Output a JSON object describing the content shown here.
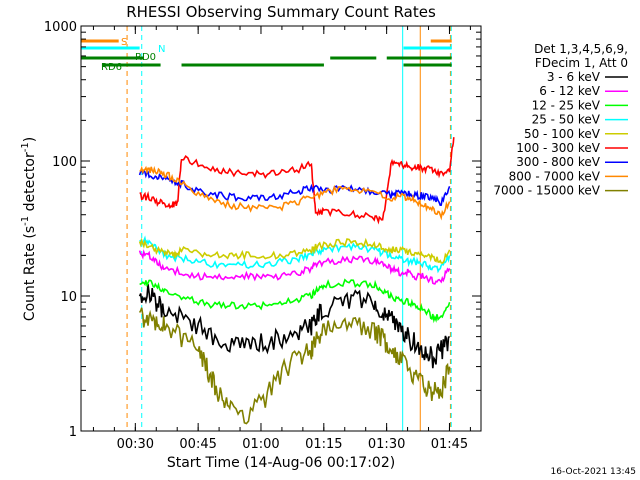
{
  "chart_data": {
    "type": "line",
    "title": "RHESSI Observing Summary Count Rates",
    "xlabel": "Start Time (14-Aug-06 00:17:02)",
    "ylabel": "Count Rate (s",
    "ylabel_sup": "-1",
    "ylabel_tail": " detector",
    "ylabel_sup2": "-1",
    "ylabel_close": ")",
    "x_unit": "minutes after 00:17:02",
    "xlim": [
      0,
      95.5
    ],
    "ylim": [
      1,
      1000
    ],
    "yscale": "log",
    "x_ticks": [
      {
        "label": "00:30",
        "x": 12.97
      },
      {
        "label": "00:45",
        "x": 27.97
      },
      {
        "label": "01:00",
        "x": 42.97
      },
      {
        "label": "01:15",
        "x": 57.97
      },
      {
        "label": "01:30",
        "x": 72.97
      },
      {
        "label": "01:45",
        "x": 87.97
      }
    ],
    "y_ticks": [
      {
        "label": "1",
        "y": 1
      },
      {
        "label": "10",
        "y": 10
      },
      {
        "label": "100",
        "y": 100
      },
      {
        "label": "1000",
        "y": 1000
      }
    ],
    "legend_header": [
      "Det 1,3,4,5,6,9,",
      "FDecim 1, Att 0"
    ],
    "series": [
      {
        "name": "3 - 6 keV",
        "color": "#000000",
        "x": [
          14,
          16,
          18,
          20,
          24,
          28,
          32,
          36,
          40,
          44,
          48,
          52,
          55,
          56,
          58,
          62,
          66,
          70,
          72,
          74,
          76,
          78,
          80,
          82,
          84,
          86,
          88
        ],
        "y": [
          10,
          11,
          9,
          8,
          7,
          6,
          5,
          4.5,
          4.5,
          4.5,
          5,
          5.5,
          6,
          7,
          8,
          9,
          9.5,
          9,
          8,
          7,
          6,
          5,
          4.5,
          4,
          3.5,
          4,
          5
        ]
      },
      {
        "name": "6 - 12 keV",
        "color": "#ff00ff",
        "x": [
          14,
          16,
          18,
          20,
          24,
          28,
          32,
          36,
          40,
          44,
          48,
          52,
          55,
          56,
          58,
          62,
          66,
          70,
          72,
          74,
          76,
          78,
          80,
          82,
          84,
          86,
          88
        ],
        "y": [
          21,
          20,
          18,
          16,
          15,
          14,
          14,
          14,
          14,
          14,
          14,
          15,
          16,
          17,
          18,
          18.5,
          19,
          18,
          17,
          16,
          15,
          15,
          14,
          14,
          13,
          13,
          16
        ]
      },
      {
        "name": "12 - 25 keV",
        "color": "#00ff00",
        "x": [
          14,
          16,
          18,
          20,
          24,
          28,
          32,
          36,
          40,
          44,
          48,
          52,
          55,
          56,
          58,
          62,
          66,
          70,
          72,
          74,
          76,
          78,
          80,
          82,
          84,
          86,
          88
        ],
        "y": [
          13,
          12.5,
          12,
          11,
          10,
          9,
          8.5,
          8.5,
          8.5,
          8.5,
          9,
          9.5,
          10,
          11,
          12,
          12.5,
          12.5,
          12,
          11,
          10,
          9.5,
          9,
          8.5,
          8,
          7,
          7,
          9
        ]
      },
      {
        "name": "25 - 50 keV",
        "color": "#00ffff",
        "x": [
          14,
          16,
          18,
          20,
          24,
          28,
          32,
          36,
          40,
          44,
          48,
          52,
          55,
          56,
          58,
          62,
          66,
          70,
          72,
          74,
          76,
          78,
          80,
          82,
          84,
          86,
          88
        ],
        "y": [
          26,
          25,
          23,
          20,
          19,
          18,
          17,
          17,
          17,
          17,
          18,
          19,
          20,
          21,
          22,
          23,
          23,
          22,
          21,
          20,
          19,
          18,
          18,
          17,
          16,
          16,
          20
        ]
      },
      {
        "name": "50 - 100 keV",
        "color": "#cccc00",
        "x": [
          14,
          16,
          18,
          20,
          22,
          23,
          24,
          28,
          32,
          36,
          40,
          44,
          48,
          52,
          55,
          56,
          58,
          62,
          66,
          70,
          72,
          74,
          76,
          78,
          80,
          82,
          84,
          86,
          88
        ],
        "y": [
          25,
          24,
          22,
          21,
          20,
          20,
          22,
          21,
          20,
          20,
          20,
          20,
          20,
          21,
          22,
          23,
          24,
          25,
          25,
          24,
          23,
          22,
          22,
          21,
          21,
          20,
          19,
          18,
          22
        ]
      },
      {
        "name": "100 - 300 keV",
        "color": "#ff0000",
        "x": [
          14,
          16,
          18,
          20,
          22,
          23,
          24,
          28,
          32,
          36,
          40,
          44,
          48,
          52,
          55,
          56,
          58,
          62,
          66,
          70,
          72,
          74,
          76,
          78,
          80,
          82,
          84,
          86,
          88,
          89
        ],
        "y": [
          55,
          54,
          50,
          48,
          48,
          47,
          105,
          95,
          87,
          82,
          80,
          80,
          82,
          87,
          95,
          42,
          42,
          41,
          40,
          38,
          36,
          95,
          94,
          92,
          90,
          88,
          86,
          80,
          85,
          150
        ]
      },
      {
        "name": "300 - 800 keV",
        "color": "#0000ff",
        "x": [
          14,
          16,
          18,
          20,
          22,
          24,
          28,
          32,
          36,
          40,
          44,
          48,
          52,
          55,
          58,
          62,
          66,
          70,
          74,
          76,
          78,
          80,
          82,
          84,
          86,
          88
        ],
        "y": [
          82,
          80,
          77,
          73,
          70,
          68,
          60,
          56,
          54,
          53,
          54,
          56,
          60,
          64,
          60,
          62,
          62,
          58,
          56,
          58,
          57,
          56,
          55,
          54,
          48,
          65
        ]
      },
      {
        "name": "800 - 7000 keV",
        "color": "#ff8800",
        "x": [
          14,
          16,
          18,
          20,
          22,
          24,
          28,
          32,
          36,
          40,
          44,
          48,
          52,
          55,
          58,
          62,
          66,
          70,
          74,
          76,
          78,
          80,
          82,
          84,
          86,
          88
        ],
        "y": [
          85,
          87,
          85,
          80,
          75,
          70,
          58,
          50,
          47,
          45,
          45,
          46,
          50,
          55,
          58,
          62,
          62,
          58,
          52,
          55,
          54,
          50,
          47,
          44,
          40,
          50
        ]
      },
      {
        "name": "7000 - 15000 keV",
        "color": "#808000",
        "x": [
          14,
          16,
          18,
          20,
          24,
          28,
          30,
          32,
          34,
          36,
          40,
          44,
          48,
          52,
          55,
          56,
          58,
          62,
          66,
          70,
          72,
          74,
          76,
          78,
          80,
          82,
          84,
          86,
          88
        ],
        "y": [
          7,
          7,
          6.5,
          6,
          5,
          4,
          3,
          2.2,
          1.6,
          1.4,
          1.3,
          1.8,
          2.8,
          3.5,
          4,
          5,
          5.5,
          6,
          6,
          5.5,
          5,
          4,
          3.5,
          3,
          2.5,
          2.2,
          2,
          2,
          3
        ]
      }
    ],
    "state_bars": [
      {
        "label": "S",
        "color": "#ff8800",
        "x": [
          [
            0,
            9
          ],
          [
            83.5,
            88.5
          ]
        ]
      },
      {
        "label": "N",
        "color": "#00ffff",
        "x": [
          [
            0,
            14
          ],
          [
            77,
            88.5
          ]
        ]
      },
      {
        "label": "RD0",
        "color": "#008000",
        "x": [
          [
            0,
            15
          ],
          [
            59.5,
            70.5
          ],
          [
            73,
            88.5
          ]
        ]
      },
      {
        "label": "RD6",
        "color": "#008000",
        "x": [
          [
            5,
            19
          ],
          [
            24,
            58
          ],
          [
            77,
            88.5
          ]
        ]
      }
    ],
    "vertical_markers": [
      {
        "x": 11,
        "color": "#ff8800",
        "style": "dashed"
      },
      {
        "x": 14.5,
        "color": "#00ffff",
        "style": "dashed"
      },
      {
        "x": 76.8,
        "color": "#00ffff",
        "style": "solid"
      },
      {
        "x": 81,
        "color": "#ff8800",
        "style": "solid"
      },
      {
        "x": 88.2,
        "color": "#ff8800",
        "style": "dashed"
      },
      {
        "x": 88.4,
        "color": "#00ffff",
        "style": "dashed"
      }
    ],
    "footer": "16-Oct-2021 13:45"
  }
}
